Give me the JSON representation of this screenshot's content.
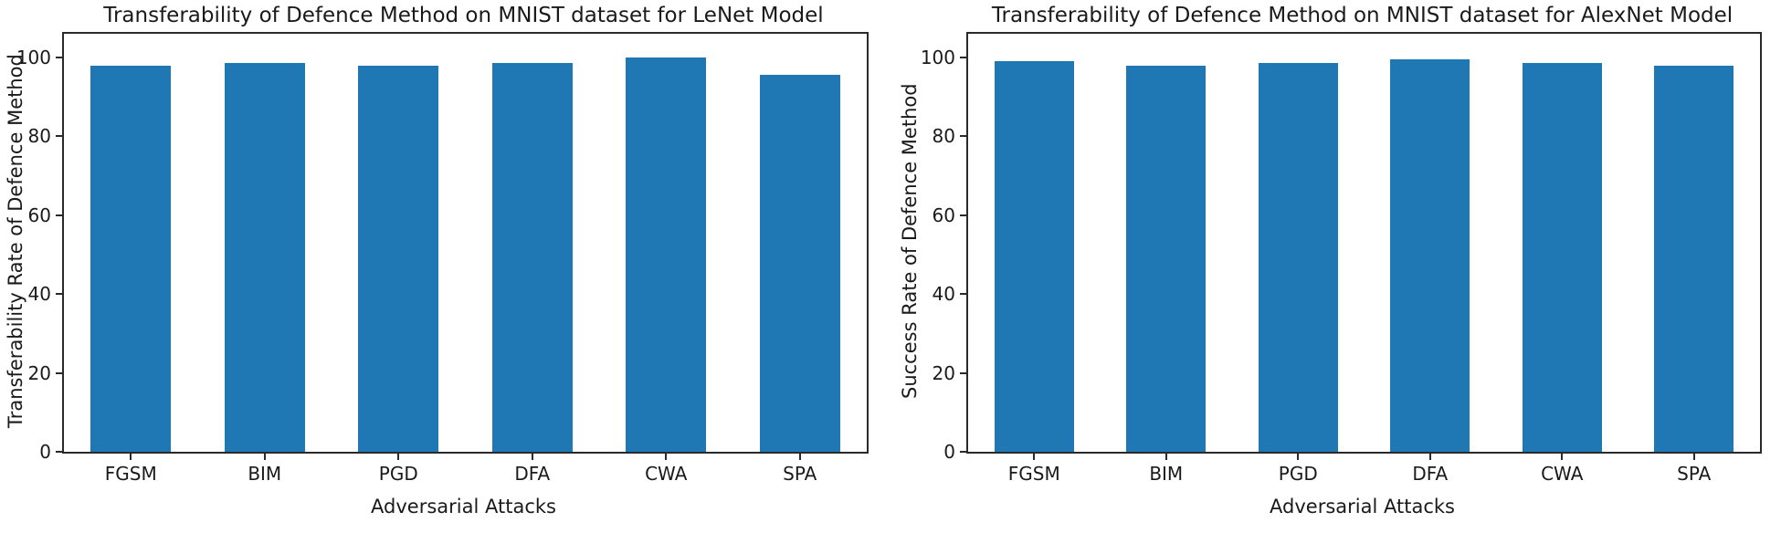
{
  "figure": {
    "background_color": "#ffffff",
    "bar_color": "#1f77b4",
    "spine_color": "#2a2a2a",
    "text_color": "#1a1a1a"
  },
  "chart_data": [
    {
      "type": "bar",
      "title": "Transferability of Defence Method on MNIST dataset for LeNet Model",
      "xlabel": "Adversarial Attacks",
      "ylabel": "Transferability Rate of Defence Method",
      "categories": [
        "FGSM",
        "BIM",
        "PGD",
        "DFA",
        "CWA",
        "SPA"
      ],
      "values": [
        98,
        98.5,
        98,
        98.5,
        100,
        95.5
      ],
      "yticks": [
        0,
        20,
        40,
        60,
        80,
        100
      ],
      "ylim": [
        0,
        106
      ],
      "grid": false,
      "legend_position": "none",
      "bar_color": "#1f77b4"
    },
    {
      "type": "bar",
      "title": "Transferability of Defence Method on MNIST dataset for AlexNet Model",
      "xlabel": "Adversarial Attacks",
      "ylabel": "Success Rate of Defence Method",
      "categories": [
        "FGSM",
        "BIM",
        "PGD",
        "DFA",
        "CWA",
        "SPA"
      ],
      "values": [
        99,
        98,
        98.5,
        99.5,
        98.5,
        98
      ],
      "yticks": [
        0,
        20,
        40,
        60,
        80,
        100
      ],
      "ylim": [
        0,
        106
      ],
      "grid": false,
      "legend_position": "none",
      "bar_color": "#1f77b4"
    }
  ]
}
